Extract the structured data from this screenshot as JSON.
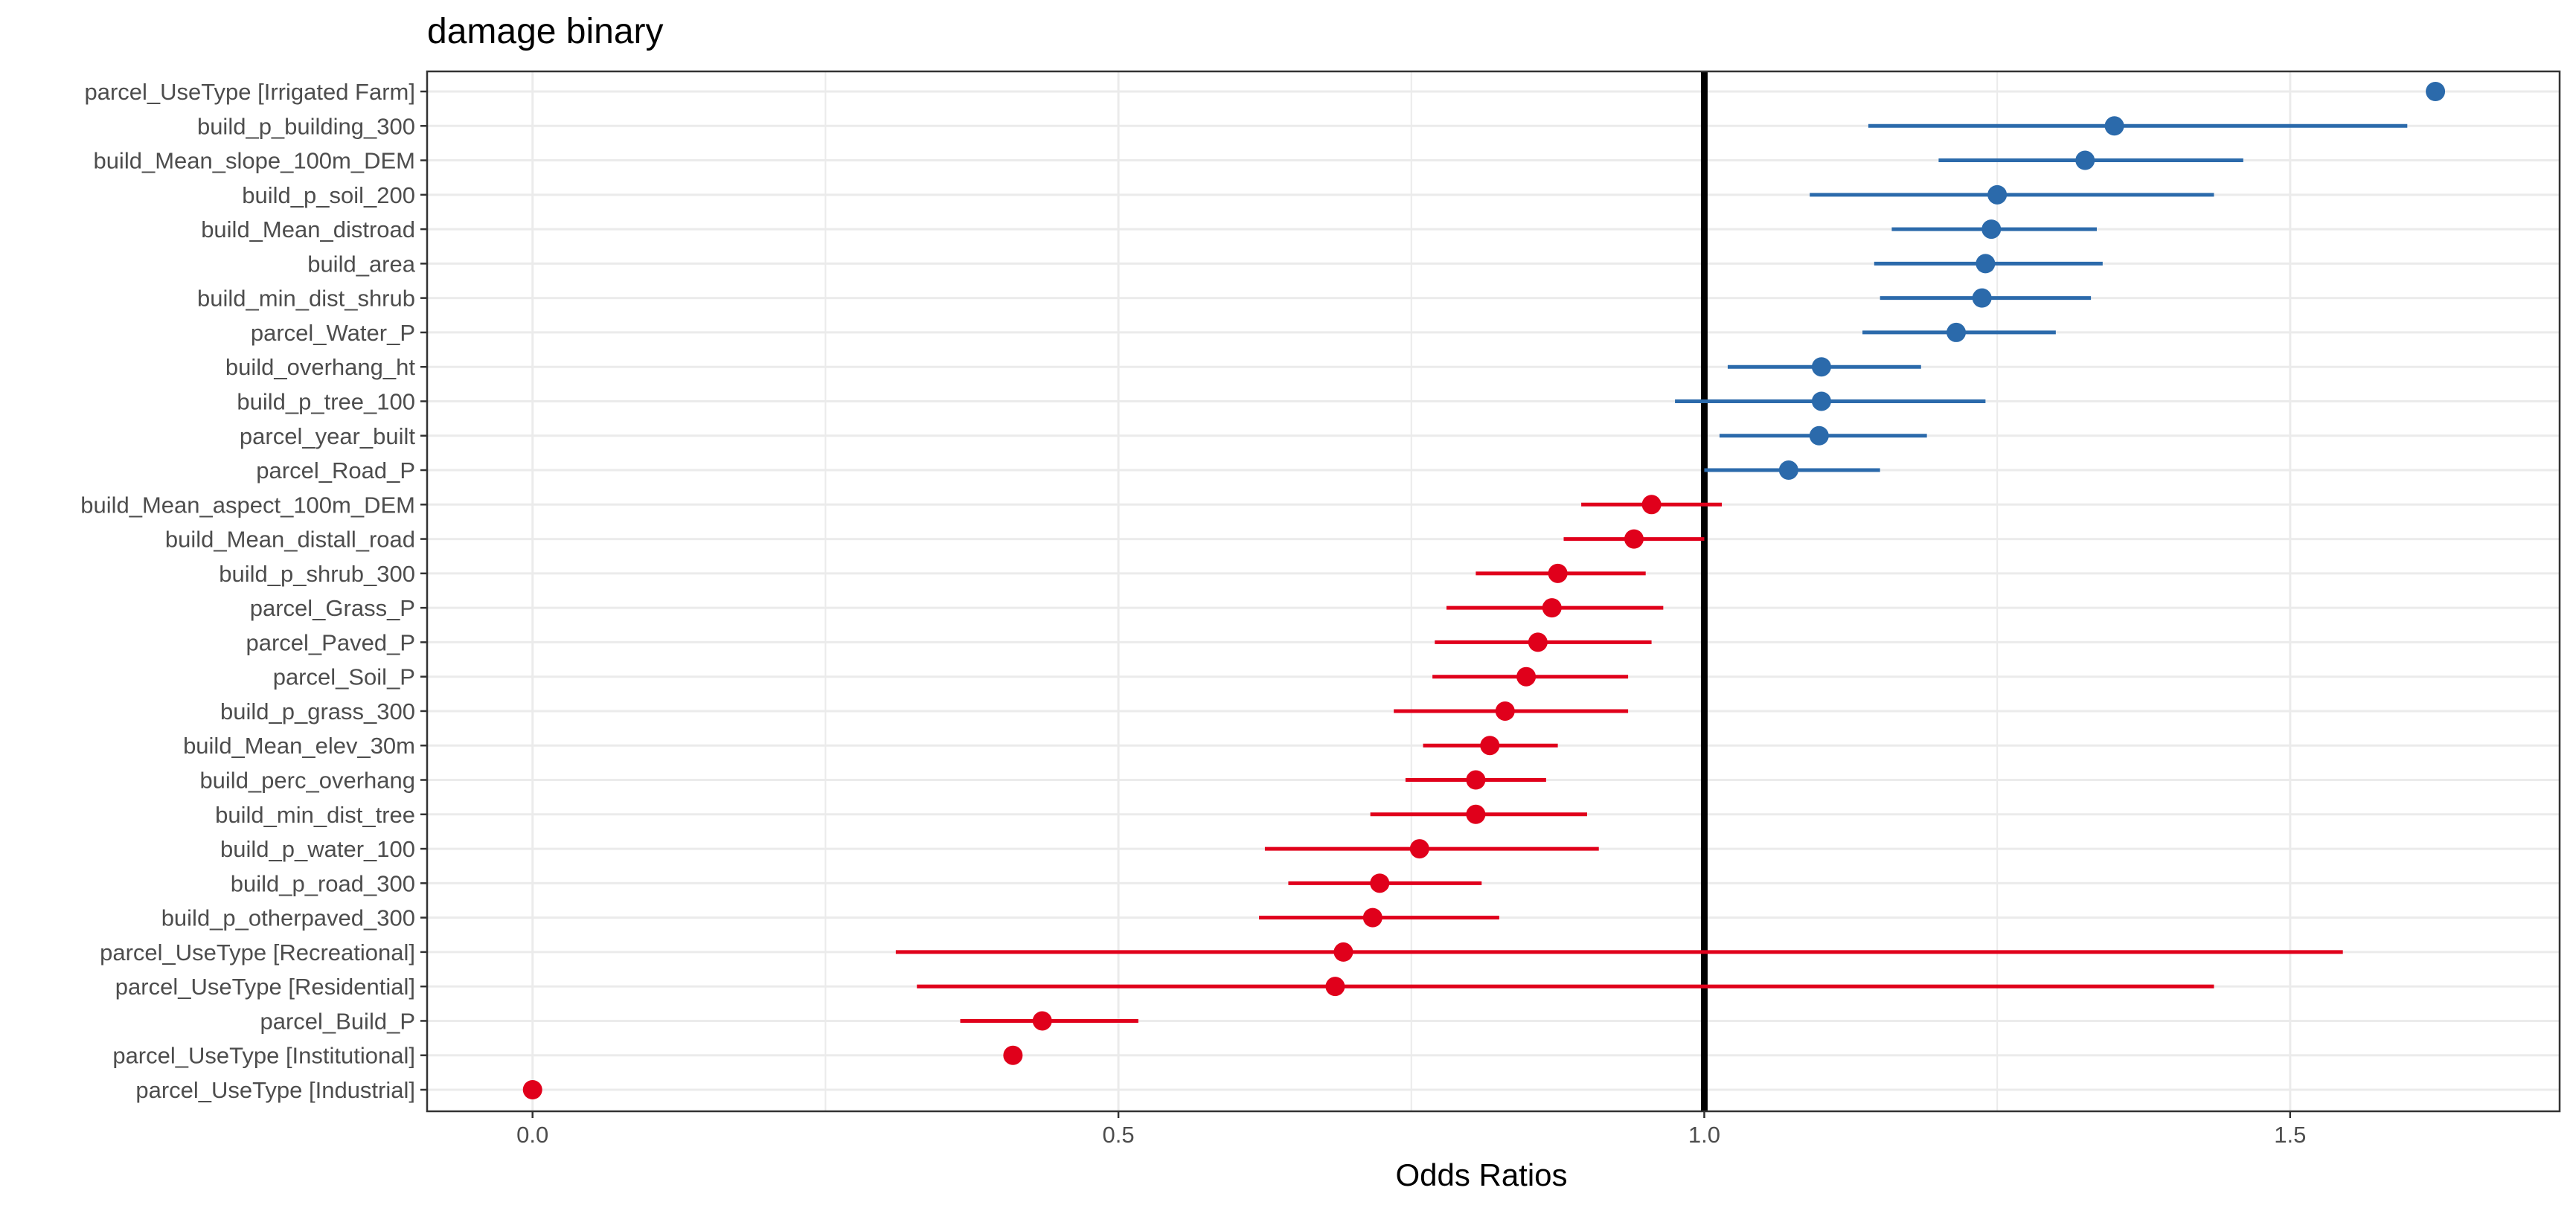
{
  "chart_data": {
    "type": "forest",
    "title": "damage binary",
    "xlabel": "Odds Ratios",
    "ylabel": "",
    "xlim": [
      -0.09,
      1.73
    ],
    "xticks": [
      0.0,
      0.5,
      1.0,
      1.5
    ],
    "xtick_labels": [
      "0.0",
      "0.5",
      "1.0",
      "1.5"
    ],
    "reference_line": 1.0,
    "grid": true,
    "colors": {
      "positive": "#2b6aab",
      "negative": "#e0001b",
      "reference": "#000000",
      "grid": "#ebebeb"
    },
    "terms": [
      {
        "label": "parcel_UseType [Irrigated Farm]",
        "estimate": 1.624,
        "low": null,
        "high": null,
        "direction": "positive"
      },
      {
        "label": "build_p_building_300",
        "estimate": 1.35,
        "low": 1.14,
        "high": 1.6,
        "direction": "positive"
      },
      {
        "label": "build_Mean_slope_100m_DEM",
        "estimate": 1.325,
        "low": 1.2,
        "high": 1.46,
        "direction": "positive"
      },
      {
        "label": "build_p_soil_200",
        "estimate": 1.25,
        "low": 1.09,
        "high": 1.435,
        "direction": "positive"
      },
      {
        "label": "build_Mean_distroad",
        "estimate": 1.245,
        "low": 1.16,
        "high": 1.335,
        "direction": "positive"
      },
      {
        "label": "build_area",
        "estimate": 1.24,
        "low": 1.145,
        "high": 1.34,
        "direction": "positive"
      },
      {
        "label": "build_min_dist_shrub",
        "estimate": 1.237,
        "low": 1.15,
        "high": 1.33,
        "direction": "positive"
      },
      {
        "label": "parcel_Water_P",
        "estimate": 1.215,
        "low": 1.135,
        "high": 1.3,
        "direction": "positive"
      },
      {
        "label": "build_overhang_ht",
        "estimate": 1.1,
        "low": 1.02,
        "high": 1.185,
        "direction": "positive"
      },
      {
        "label": "build_p_tree_100",
        "estimate": 1.1,
        "low": 0.975,
        "high": 1.24,
        "direction": "positive"
      },
      {
        "label": "parcel_year_built",
        "estimate": 1.098,
        "low": 1.013,
        "high": 1.19,
        "direction": "positive"
      },
      {
        "label": "parcel_Road_P",
        "estimate": 1.072,
        "low": 1.0,
        "high": 1.15,
        "direction": "positive"
      },
      {
        "label": "build_Mean_aspect_100m_DEM",
        "estimate": 0.955,
        "low": 0.895,
        "high": 1.015,
        "direction": "negative"
      },
      {
        "label": "build_Mean_distall_road",
        "estimate": 0.94,
        "low": 0.88,
        "high": 1.0,
        "direction": "negative"
      },
      {
        "label": "build_p_shrub_300",
        "estimate": 0.875,
        "low": 0.805,
        "high": 0.95,
        "direction": "negative"
      },
      {
        "label": "parcel_Grass_P",
        "estimate": 0.87,
        "low": 0.78,
        "high": 0.965,
        "direction": "negative"
      },
      {
        "label": "parcel_Paved_P",
        "estimate": 0.858,
        "low": 0.77,
        "high": 0.955,
        "direction": "negative"
      },
      {
        "label": "parcel_Soil_P",
        "estimate": 0.848,
        "low": 0.768,
        "high": 0.935,
        "direction": "negative"
      },
      {
        "label": "build_p_grass_300",
        "estimate": 0.83,
        "low": 0.735,
        "high": 0.935,
        "direction": "negative"
      },
      {
        "label": "build_Mean_elev_30m",
        "estimate": 0.817,
        "low": 0.76,
        "high": 0.875,
        "direction": "negative"
      },
      {
        "label": "build_perc_overhang",
        "estimate": 0.805,
        "low": 0.745,
        "high": 0.865,
        "direction": "negative"
      },
      {
        "label": "build_min_dist_tree",
        "estimate": 0.805,
        "low": 0.715,
        "high": 0.9,
        "direction": "negative"
      },
      {
        "label": "build_p_water_100",
        "estimate": 0.757,
        "low": 0.625,
        "high": 0.91,
        "direction": "negative"
      },
      {
        "label": "build_p_road_300",
        "estimate": 0.723,
        "low": 0.645,
        "high": 0.81,
        "direction": "negative"
      },
      {
        "label": "build_p_otherpaved_300",
        "estimate": 0.717,
        "low": 0.62,
        "high": 0.825,
        "direction": "negative"
      },
      {
        "label": "parcel_UseType [Recreational]",
        "estimate": 0.692,
        "low": 0.31,
        "high": 1.545,
        "direction": "negative"
      },
      {
        "label": "parcel_UseType [Residential]",
        "estimate": 0.685,
        "low": 0.328,
        "high": 1.435,
        "direction": "negative"
      },
      {
        "label": "parcel_Build_P",
        "estimate": 0.435,
        "low": 0.365,
        "high": 0.517,
        "direction": "negative"
      },
      {
        "label": "parcel_UseType [Institutional]",
        "estimate": 0.41,
        "low": null,
        "high": null,
        "direction": "negative"
      },
      {
        "label": "parcel_UseType [Industrial]",
        "estimate": 0.0,
        "low": null,
        "high": null,
        "direction": "negative"
      }
    ]
  }
}
